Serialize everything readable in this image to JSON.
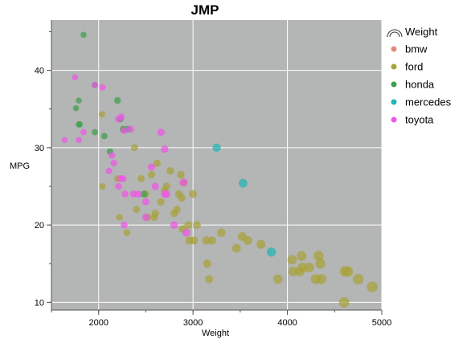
{
  "chart_data": {
    "type": "scatter",
    "title": "JMP",
    "xlabel": "Weight",
    "ylabel": "MPG",
    "xlim": [
      1500,
      5000
    ],
    "ylim": [
      9,
      46.5
    ],
    "x_ticks": [
      2000,
      3000,
      4000,
      5000
    ],
    "y_ticks": [
      10,
      20,
      30,
      40
    ],
    "grid": true,
    "legend_position": "right",
    "legend": {
      "size_title": "Weight",
      "entries": [
        {
          "name": "bmw",
          "color": "#e08a80"
        },
        {
          "name": "ford",
          "color": "#a8a23a"
        },
        {
          "name": "honda",
          "color": "#3ea04e"
        },
        {
          "name": "mercedes",
          "color": "#22b5b5"
        },
        {
          "name": "toyota",
          "color": "#f055e8"
        }
      ]
    },
    "series": [
      {
        "name": "ford",
        "color": "#a8a23a",
        "points": [
          [
            2035,
            34.3
          ],
          [
            2040,
            25
          ],
          [
            2200,
            26
          ],
          [
            2220,
            21
          ],
          [
            2300,
            19
          ],
          [
            2380,
            30
          ],
          [
            2400,
            22
          ],
          [
            2450,
            26
          ],
          [
            2500,
            24
          ],
          [
            2520,
            21
          ],
          [
            2560,
            26.5
          ],
          [
            2590,
            21
          ],
          [
            2600,
            21.5
          ],
          [
            2620,
            28
          ],
          [
            2660,
            23
          ],
          [
            2700,
            24.5
          ],
          [
            2720,
            25
          ],
          [
            2760,
            27
          ],
          [
            2800,
            21.5
          ],
          [
            2830,
            22
          ],
          [
            2850,
            24
          ],
          [
            2870,
            26.5
          ],
          [
            2880,
            23.5
          ],
          [
            2890,
            19.5
          ],
          [
            2900,
            25.5
          ],
          [
            2950,
            20
          ],
          [
            2960,
            18
          ],
          [
            3000,
            24
          ],
          [
            3010,
            18
          ],
          [
            3040,
            20
          ],
          [
            3140,
            18
          ],
          [
            3150,
            15
          ],
          [
            3170,
            13
          ],
          [
            3200,
            18
          ],
          [
            3300,
            19
          ],
          [
            3460,
            17
          ],
          [
            3520,
            18.5
          ],
          [
            3580,
            18
          ],
          [
            3720,
            17.5
          ],
          [
            3900,
            13
          ],
          [
            4050,
            15.5
          ],
          [
            4060,
            14
          ],
          [
            4130,
            14
          ],
          [
            4150,
            16
          ],
          [
            4160,
            14.5
          ],
          [
            4230,
            14.5
          ],
          [
            4300,
            13
          ],
          [
            4330,
            16
          ],
          [
            4350,
            15
          ],
          [
            4360,
            13
          ],
          [
            4600,
            10
          ],
          [
            4610,
            14
          ],
          [
            4640,
            14
          ],
          [
            4750,
            13
          ],
          [
            4900,
            12
          ]
        ]
      },
      {
        "name": "honda",
        "color": "#3ea04e",
        "points": [
          [
            1840,
            44.6
          ],
          [
            1960,
            38.1
          ],
          [
            2200,
            36.1
          ],
          [
            1790,
            36.1
          ],
          [
            1760,
            35.1
          ],
          [
            1800,
            33
          ],
          [
            1790,
            33
          ],
          [
            1960,
            32
          ],
          [
            2060,
            31.5
          ],
          [
            2120,
            29.5
          ],
          [
            2230,
            33.7
          ],
          [
            2260,
            32.4
          ],
          [
            2310,
            32.4
          ],
          [
            2480,
            24
          ]
        ]
      },
      {
        "name": "toyota",
        "color": "#f055e8",
        "points": [
          [
            1750,
            39.1
          ],
          [
            1960,
            38.1
          ],
          [
            2040,
            37.8
          ],
          [
            2240,
            34
          ],
          [
            2210,
            33.7
          ],
          [
            2270,
            32.2
          ],
          [
            2340,
            32.4
          ],
          [
            2660,
            32
          ],
          [
            1790,
            31
          ],
          [
            1640,
            31
          ],
          [
            1840,
            32
          ],
          [
            2700,
            29.8
          ],
          [
            2140,
            29
          ],
          [
            2160,
            28
          ],
          [
            2230,
            26
          ],
          [
            2260,
            26
          ],
          [
            2110,
            27
          ],
          [
            2210,
            25
          ],
          [
            2280,
            24
          ],
          [
            2370,
            24
          ],
          [
            2270,
            20
          ],
          [
            2420,
            24
          ],
          [
            2500,
            21
          ],
          [
            2500,
            23
          ],
          [
            2560,
            27.5
          ],
          [
            2600,
            25
          ],
          [
            2720,
            24
          ],
          [
            2700,
            24
          ],
          [
            2900,
            25.5
          ],
          [
            2800,
            20
          ],
          [
            2930,
            19
          ]
        ]
      },
      {
        "name": "mercedes",
        "color": "#22b5b5",
        "points": [
          [
            3250,
            30
          ],
          [
            3530,
            25.4
          ],
          [
            3830,
            16.5
          ]
        ]
      }
    ]
  }
}
